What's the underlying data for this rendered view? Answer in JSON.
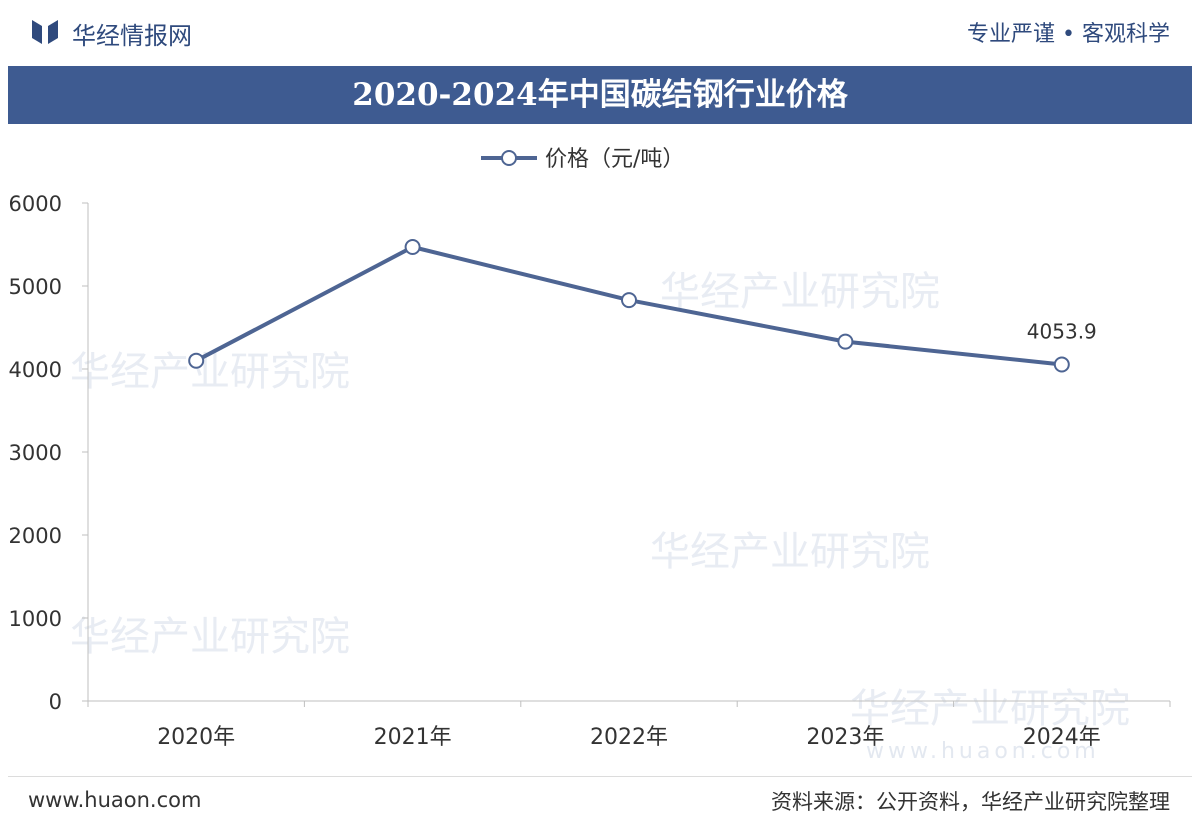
{
  "header": {
    "brand": "华经情报网",
    "motto": "专业严谨 • 客观科学"
  },
  "chart_title": "2020-2024年中国碳结钢行业价格",
  "footer": {
    "site": "www.huaon.com",
    "source": "资料来源：公开资料，华经产业研究院整理"
  },
  "watermark": {
    "text": "华经产业研究院",
    "url": "www.huaon.com"
  },
  "colors": {
    "line": "#4e6593",
    "title_bg": "#3e5b91",
    "brand": "#2f4a7d"
  },
  "chart_data": {
    "type": "line",
    "categories": [
      "2020年",
      "2021年",
      "2022年",
      "2023年",
      "2024年"
    ],
    "series": [
      {
        "name": "价格（元/吨）",
        "values": [
          4100,
          5470,
          4830,
          4330,
          4053.9
        ]
      }
    ],
    "data_labels": [
      {
        "index": 4,
        "text": "4053.9"
      }
    ],
    "yticks": [
      0,
      1000,
      2000,
      3000,
      4000,
      5000,
      6000
    ],
    "ylim": [
      0,
      6000
    ],
    "legend": "top-center",
    "grid": false
  }
}
